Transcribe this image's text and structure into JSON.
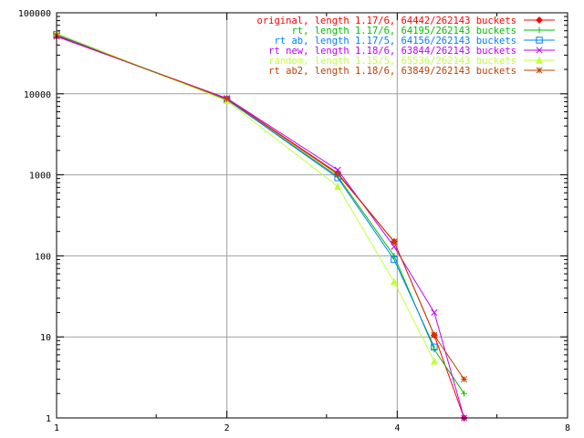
{
  "chart_data": {
    "type": "line",
    "title": "",
    "xlabel": "",
    "ylabel": "",
    "x_scale": "log2",
    "y_scale": "log10",
    "xlim": [
      1,
      8
    ],
    "ylim": [
      1,
      100000
    ],
    "x_ticks": [
      1,
      2,
      4,
      8
    ],
    "x_tick_labels": [
      "1",
      "2",
      "4",
      "8"
    ],
    "y_ticks": [
      1,
      10,
      100,
      1000,
      10000,
      100000
    ],
    "y_tick_labels": [
      "1",
      "10",
      "100",
      "1000",
      "10000",
      "100000"
    ],
    "grid": true,
    "legend_position": "top-right",
    "series": [
      {
        "name": "original, length 1.17/6, 64442/262143 buckets",
        "color": "#ff0000",
        "marker": "diamond",
        "x": [
          1,
          2,
          3.14,
          3.95,
          4.65,
          5.25
        ],
        "y": [
          52000,
          8700,
          1050,
          150,
          10.5,
          1
        ]
      },
      {
        "name": "rt, length 1.17/6, 64195/262143 buckets",
        "color": "#00c000",
        "marker": "plus",
        "x": [
          1,
          2,
          3.14,
          3.95,
          4.65,
          5.25
        ],
        "y": [
          53000,
          8400,
          960,
          100,
          7,
          2
        ]
      },
      {
        "name": "rt ab, length 1.17/5, 64156/262143 buckets",
        "color": "#0080ff",
        "marker": "square",
        "x": [
          1,
          2,
          3.14,
          3.95,
          4.65
        ],
        "y": [
          54000,
          8500,
          920,
          90,
          7.5
        ]
      },
      {
        "name": "rt new, length 1.18/6, 63844/262143 buckets",
        "color": "#c000ff",
        "marker": "cross",
        "x": [
          1,
          2,
          3.14,
          3.95,
          4.65,
          5.25
        ],
        "y": [
          51000,
          8800,
          1150,
          130,
          20,
          1
        ]
      },
      {
        "name": "random, length 1.15/5, 65536/262143 buckets",
        "color": "#c0ff40",
        "marker": "triangle",
        "x": [
          1,
          2,
          3.14,
          3.95,
          4.65
        ],
        "y": [
          56000,
          8200,
          720,
          48,
          5
        ]
      },
      {
        "name": "rt ab2, length 1.18/6, 63849/262143 buckets",
        "color": "#c04000",
        "marker": "star",
        "x": [
          1,
          2,
          3.14,
          3.95,
          4.65,
          5.25
        ],
        "y": [
          52500,
          8600,
          1020,
          150,
          10.5,
          3
        ]
      }
    ]
  }
}
